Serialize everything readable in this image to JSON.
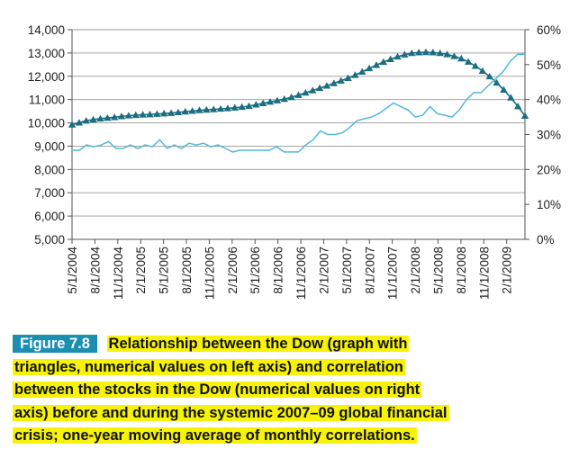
{
  "chart_data": {
    "type": "line",
    "x_tick_labels": [
      "5/1/2004",
      "8/1/2004",
      "11/1/2004",
      "2/1/2005",
      "5/1/2005",
      "8/1/2005",
      "11/1/2005",
      "2/1/2006",
      "5/1/2006",
      "8/1/2006",
      "11/1/2006",
      "2/1/2007",
      "5/1/2007",
      "8/1/2007",
      "11/1/2007",
      "2/1/2008",
      "5/1/2008",
      "8/1/2008",
      "11/1/2008",
      "2/1/2009"
    ],
    "left_axis": {
      "min": 5000,
      "max": 14000,
      "ticks": [
        "5,000",
        "6,000",
        "7,000",
        "8,000",
        "9,000",
        "10,000",
        "11,000",
        "12,000",
        "13,000",
        "14,000"
      ]
    },
    "right_axis": {
      "min": 0,
      "max": 60,
      "ticks": [
        "0%",
        "10%",
        "20%",
        "30%",
        "40%",
        "50%",
        "60%"
      ]
    },
    "grid": true,
    "series": [
      {
        "axis": "left",
        "color": "#1b6e82",
        "marker": "triangle",
        "values": [
          9920,
          10010,
          10090,
          10140,
          10180,
          10210,
          10240,
          10280,
          10310,
          10330,
          10350,
          10360,
          10380,
          10400,
          10420,
          10450,
          10480,
          10510,
          10540,
          10560,
          10580,
          10600,
          10620,
          10650,
          10680,
          10720,
          10780,
          10840,
          10900,
          10960,
          11020,
          11100,
          11190,
          11290,
          11390,
          11490,
          11590,
          11700,
          11810,
          11920,
          12050,
          12190,
          12340,
          12480,
          12610,
          12730,
          12840,
          12930,
          12990,
          13020,
          13030,
          13020,
          12990,
          12940,
          12860,
          12760,
          12620,
          12440,
          12230,
          11990,
          11720,
          11420,
          11080,
          10710,
          10300
        ]
      },
      {
        "axis": "right",
        "color": "#52b8d6",
        "marker": "none",
        "values": [
          25.5,
          25.5,
          27,
          26.5,
          27,
          28,
          26,
          26,
          27,
          26,
          27,
          26.5,
          28.5,
          26,
          27,
          26,
          27.5,
          27,
          27.5,
          26.5,
          27,
          26,
          25,
          25.5,
          25.5,
          25.5,
          25.5,
          25.5,
          26.5,
          25,
          25,
          25,
          27,
          28.5,
          31,
          30,
          30,
          30.5,
          32,
          34,
          34.5,
          35,
          36,
          37.5,
          39,
          38,
          37,
          35,
          35.5,
          38,
          36,
          35.5,
          35,
          37,
          40,
          42,
          42,
          44,
          46,
          48,
          51,
          53,
          53
        ]
      }
    ]
  },
  "caption": {
    "figure_label": "Figure 7.8",
    "lines": [
      "Relationship between the Dow (graph with",
      "triangles, numerical values on left axis) and correlation",
      "between the stocks in the Dow (numerical values on right",
      "axis) before and during the systemic 2007–09 global financial",
      "crisis; one-year moving average of monthly correlations."
    ]
  }
}
